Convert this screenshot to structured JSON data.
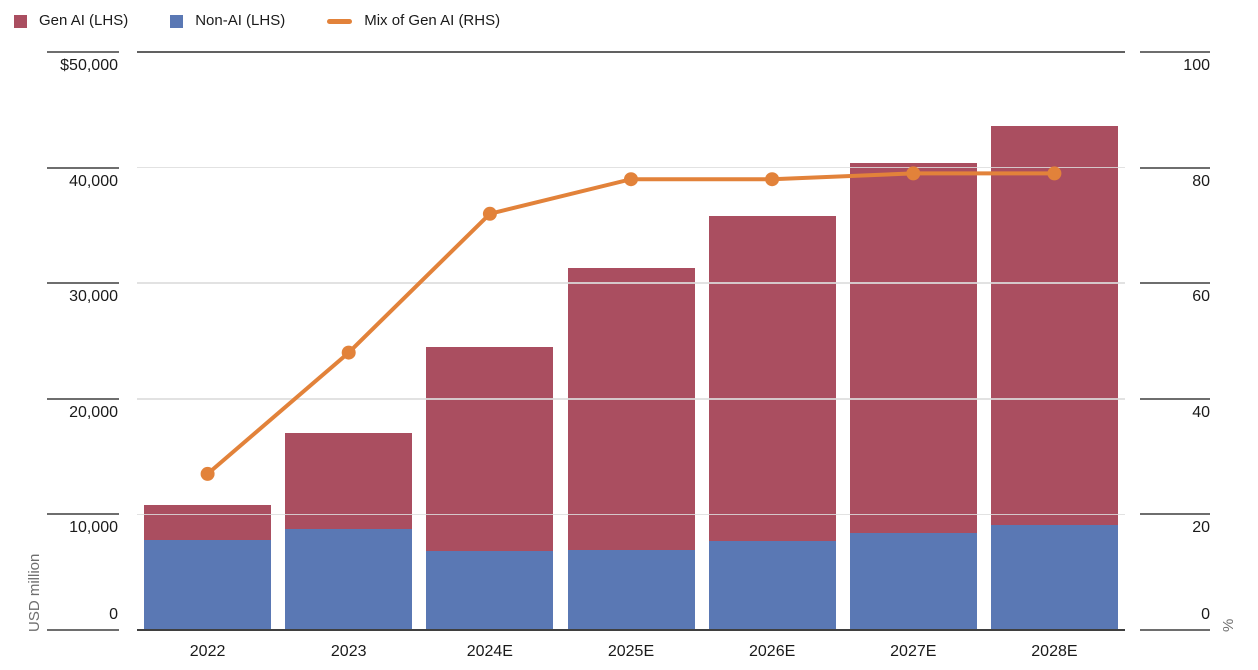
{
  "chart_data": {
    "type": "bar",
    "subtype": "stacked-bars-with-line-dual-axis",
    "title": "",
    "categories": [
      "2022",
      "2023",
      "2024E",
      "2025E",
      "2026E",
      "2027E",
      "2028E"
    ],
    "series": [
      {
        "name": "Gen AI (LHS)",
        "type": "bar",
        "axis": "left",
        "stack_position": "top",
        "color": "#aa4e60",
        "values": [
          3000,
          8300,
          17700,
          24400,
          28100,
          32000,
          34500
        ]
      },
      {
        "name": "Non-AI (LHS)",
        "type": "bar",
        "axis": "left",
        "stack_position": "bottom",
        "color": "#5a78b4",
        "values": [
          7800,
          8700,
          6800,
          6900,
          7700,
          8400,
          9100
        ]
      },
      {
        "name": "Mix of Gen AI (RHS)",
        "type": "line",
        "axis": "right",
        "color": "#e2823a",
        "values": [
          27,
          48,
          72,
          78,
          78,
          79,
          79
        ]
      }
    ],
    "stacked_totals": [
      10800,
      17000,
      24500,
      31300,
      35800,
      40400,
      43600
    ],
    "left_axis": {
      "title": "USD million",
      "range": [
        0,
        50000
      ],
      "tick_values": [
        50000,
        40000,
        30000,
        20000,
        10000,
        0
      ],
      "tick_labels": [
        "$50,000",
        "40,000",
        "30,000",
        "20,000",
        "10,000",
        "0"
      ]
    },
    "right_axis": {
      "title": "%",
      "range": [
        0,
        100
      ],
      "tick_values": [
        100,
        80,
        60,
        40,
        20,
        0
      ],
      "tick_labels": [
        "100",
        "80",
        "60",
        "40",
        "20",
        "0"
      ]
    },
    "legend_position": "top-left",
    "grid": "horizontal-only"
  },
  "colors": {
    "gen_ai": "#aa4e60",
    "non_ai": "#5a78b4",
    "mix_line": "#e2823a",
    "gridline": "#dddddd",
    "axis_dark_rule": "#616161",
    "baseline": "#3f3f3f",
    "tick_text": "#1a1a1a",
    "axis_title_text": "#6e6e6e",
    "background": "#ffffff"
  }
}
